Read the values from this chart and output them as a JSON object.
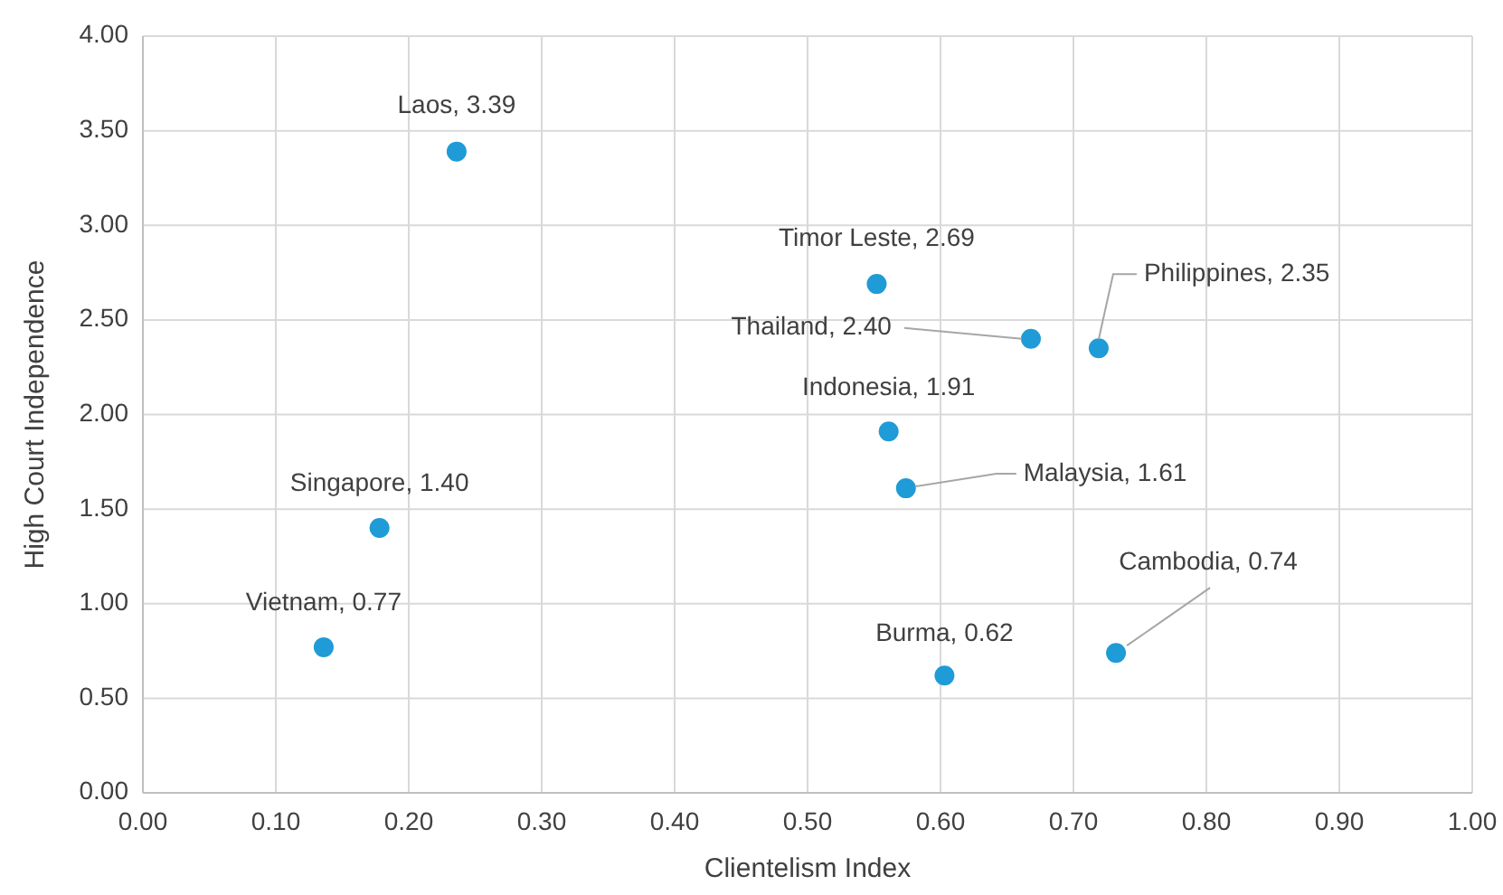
{
  "chart_data": {
    "type": "scatter",
    "xlabel": "Clientelism Index",
    "ylabel": "High Court Independence",
    "x": [
      0.236,
      0.552,
      0.668,
      0.719,
      0.561,
      0.574,
      0.178,
      0.136,
      0.603,
      0.732
    ],
    "series": [
      {
        "color": "#1f9bd7",
        "values": [
          3.39,
          2.69,
          2.4,
          2.35,
          1.91,
          1.61,
          1.4,
          0.77,
          0.62,
          0.74
        ],
        "value_labels": [
          "Laos, 3.39",
          "Timor Leste, 2.69",
          "Thailand, 2.40",
          "Philippines, 2.35",
          "Indonesia, 1.91",
          "Malaysia, 1.61",
          "Singapore, 1.40",
          "Vietnam, 0.77",
          "Burma, 0.62",
          "Cambodia, 0.74"
        ]
      }
    ],
    "xlim": [
      0,
      1
    ],
    "xticks": [
      {
        "value": 0,
        "label": "0.00"
      },
      {
        "value": 0.1,
        "label": "0.10"
      },
      {
        "value": 0.2,
        "label": "0.20"
      },
      {
        "value": 0.3,
        "label": "0.30"
      },
      {
        "value": 0.4,
        "label": "0.40"
      },
      {
        "value": 0.5,
        "label": "0.50"
      },
      {
        "value": 0.6,
        "label": "0.60"
      },
      {
        "value": 0.7,
        "label": "0.70"
      },
      {
        "value": 0.8,
        "label": "0.80"
      },
      {
        "value": 0.9,
        "label": "0.90"
      },
      {
        "value": 1,
        "label": "1.00"
      }
    ],
    "ylim": [
      0,
      4
    ],
    "yticks": [
      {
        "value": 0,
        "label": "0.00"
      },
      {
        "value": 0.5,
        "label": "0.50"
      },
      {
        "value": 1,
        "label": "1.00"
      },
      {
        "value": 1.5,
        "label": "1.50"
      },
      {
        "value": 2,
        "label": "2.00"
      },
      {
        "value": 2.5,
        "label": "2.50"
      },
      {
        "value": 3,
        "label": "3.00"
      },
      {
        "value": 3.5,
        "label": "3.50"
      },
      {
        "value": 4,
        "label": "4.00"
      }
    ],
    "grid": true,
    "marker": "circle"
  }
}
